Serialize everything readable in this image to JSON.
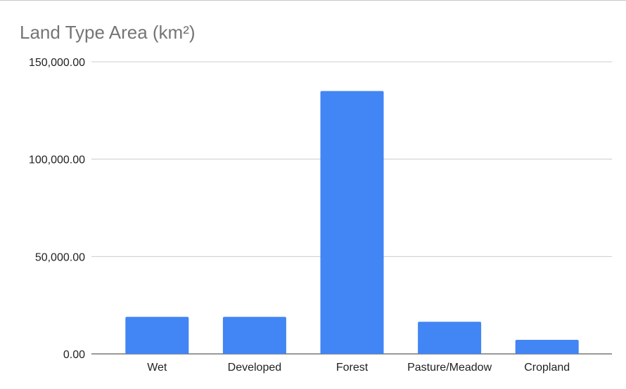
{
  "chart_data": {
    "type": "bar",
    "title": "Land Type Area (km²)",
    "xlabel": "",
    "ylabel": "",
    "categories": [
      "Wet",
      "Developed",
      "Forest",
      "Pasture/Meadow",
      "Cropland"
    ],
    "values": [
      19000,
      19000,
      135000,
      16500,
      7200
    ],
    "ylim": [
      0,
      150000
    ],
    "yticks": [
      0,
      50000,
      100000,
      150000
    ],
    "ytick_labels": [
      "0.00",
      "50,000.00",
      "100,000.00",
      "150,000.00"
    ],
    "grid": true,
    "legend": "none",
    "colors": {
      "bar": "#4285f4",
      "title": "#757575",
      "grid": "#cccccc",
      "axis": "#333333",
      "text": "#222222"
    }
  }
}
